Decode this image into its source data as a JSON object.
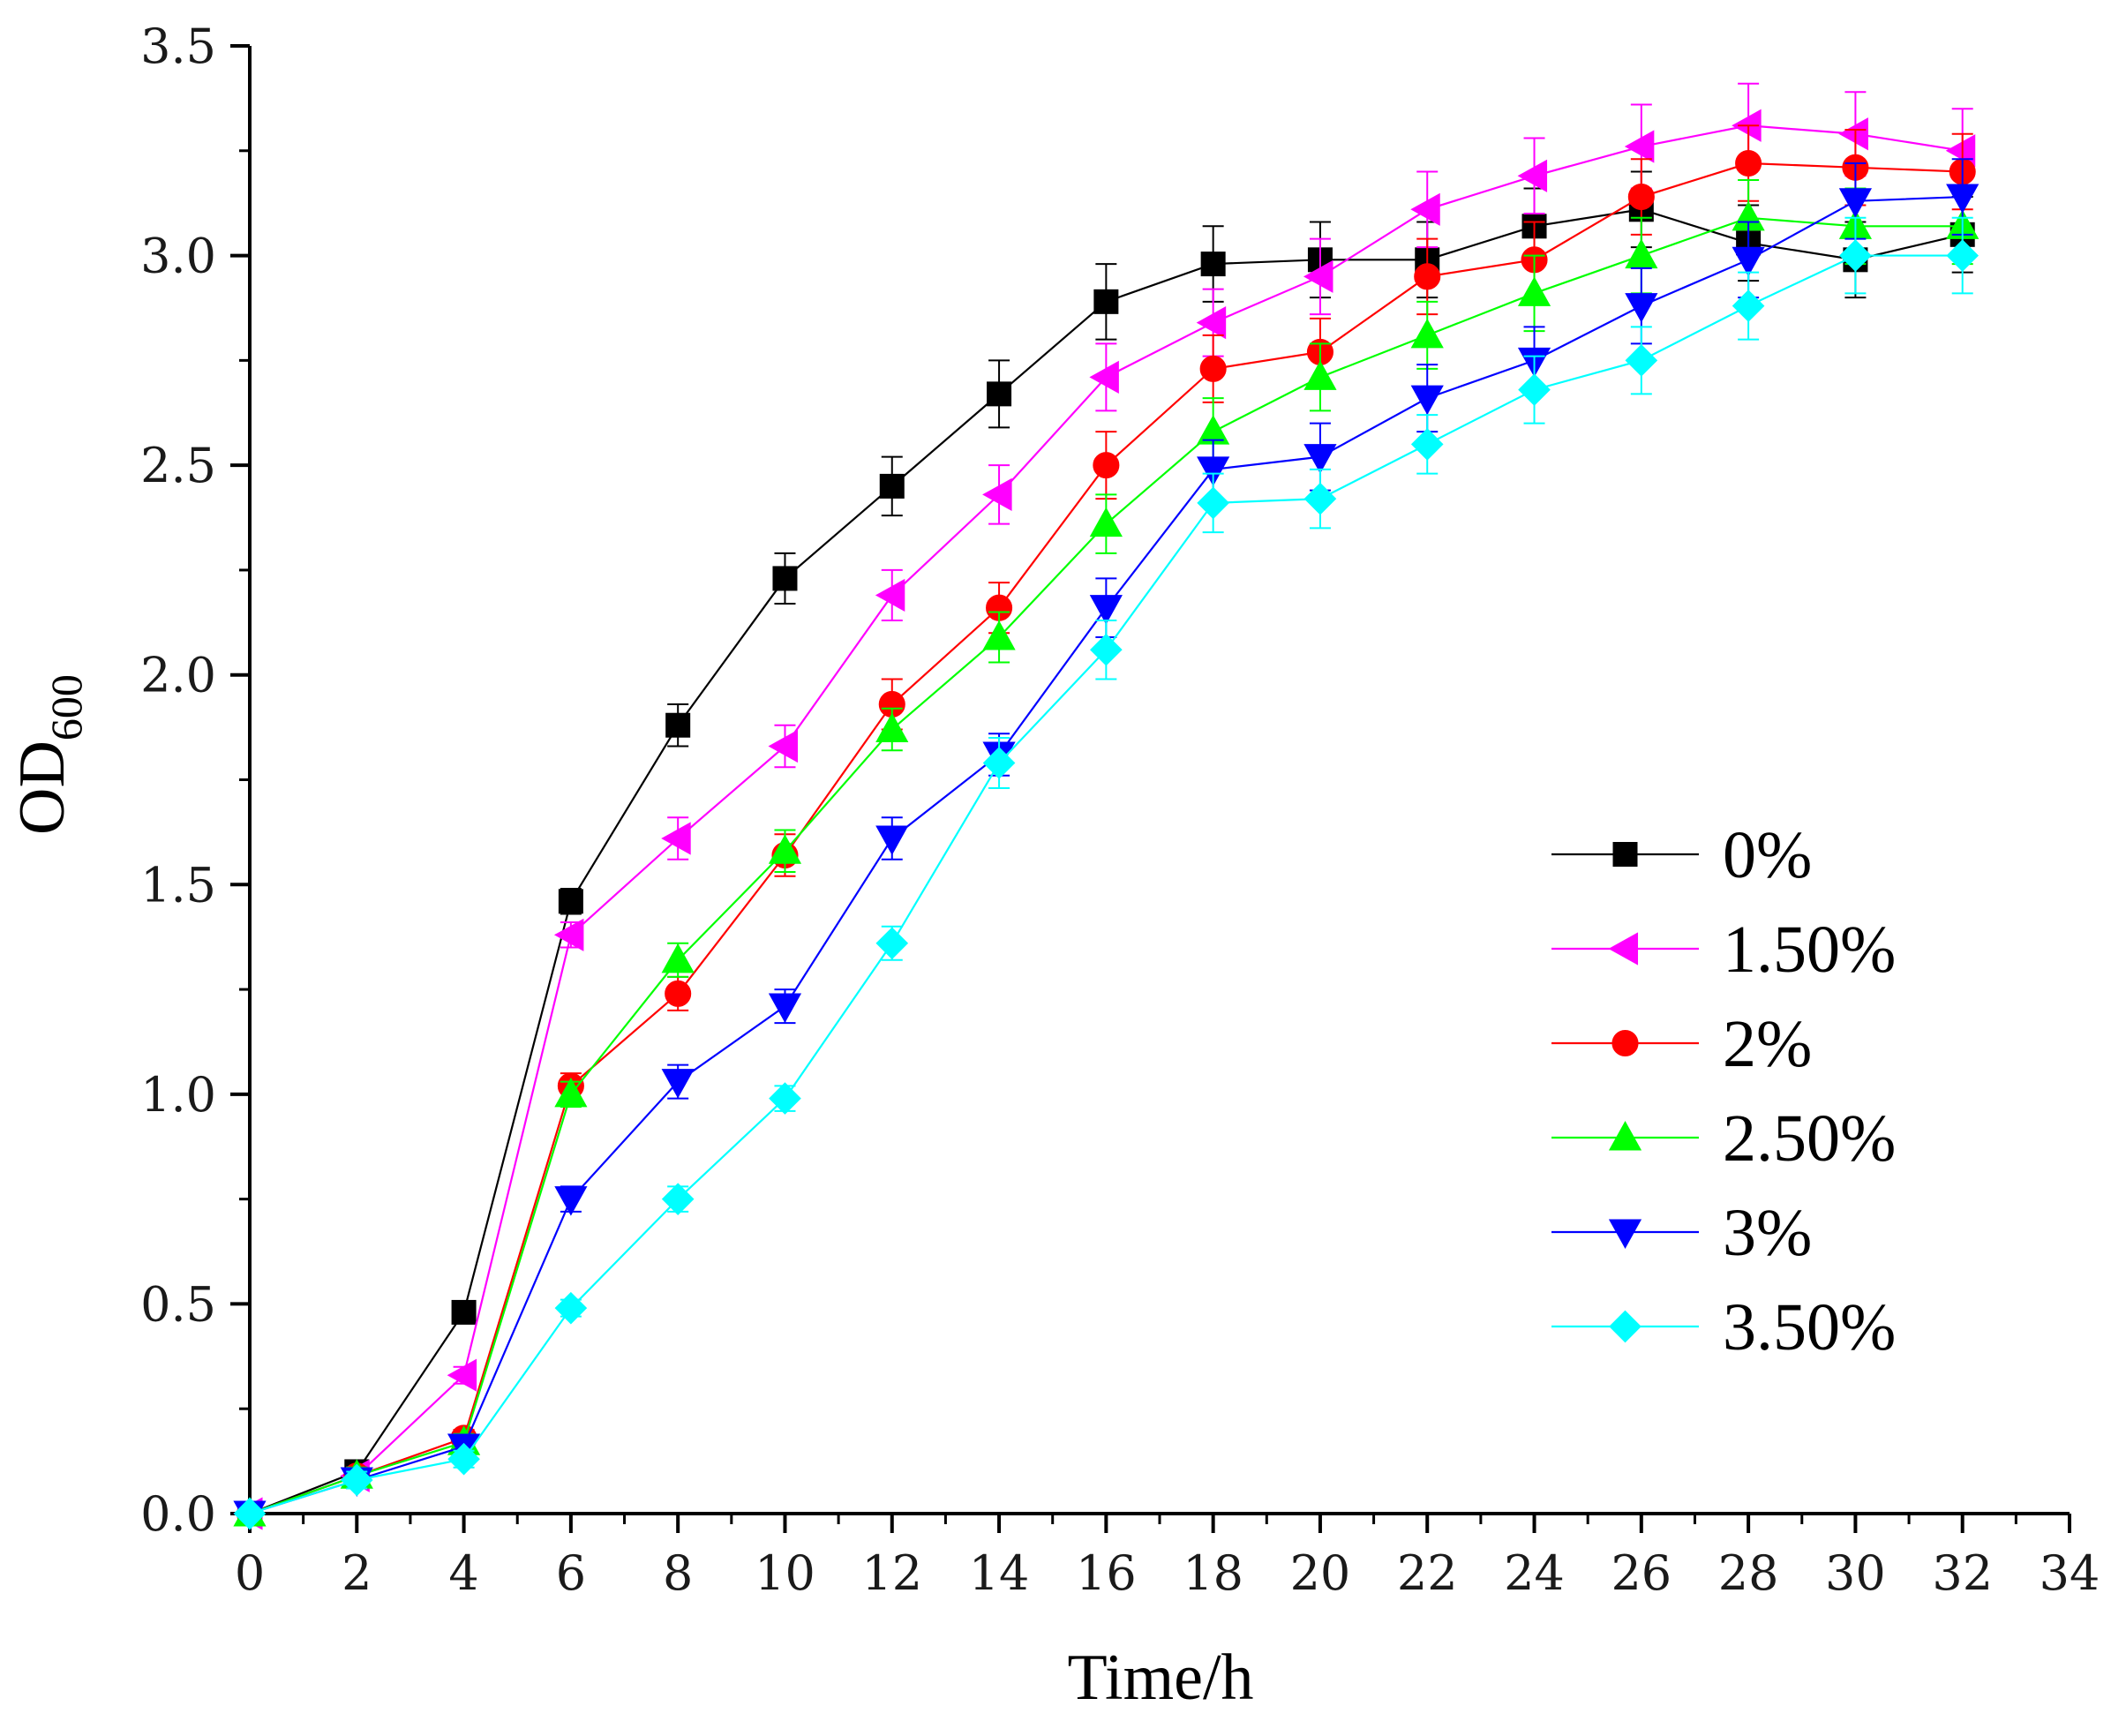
{
  "chart_data": {
    "type": "line",
    "xlabel": "Time/h",
    "ylabel": "OD",
    "ylabel_sub": "600",
    "xlim": [
      0,
      34
    ],
    "ylim": [
      0,
      3.5
    ],
    "x_ticks": [
      "0",
      "2",
      "4",
      "6",
      "8",
      "10",
      "12",
      "14",
      "16",
      "18",
      "20",
      "22",
      "24",
      "26",
      "28",
      "30",
      "32",
      "34"
    ],
    "y_ticks": [
      "0.0",
      "0.5",
      "1.0",
      "1.5",
      "2.0",
      "2.5",
      "3.0",
      "3.5"
    ],
    "x": [
      0,
      2,
      4,
      6,
      8,
      10,
      12,
      14,
      16,
      18,
      20,
      22,
      24,
      26,
      28,
      30,
      32
    ],
    "grid": false,
    "legend_position": "right",
    "series": [
      {
        "name": "0%",
        "color": "#000000",
        "marker": "square",
        "values": [
          0.0,
          0.1,
          0.48,
          1.46,
          1.88,
          2.23,
          2.45,
          2.67,
          2.89,
          2.98,
          2.99,
          2.99,
          3.07,
          3.11,
          3.03,
          2.99,
          3.05
        ],
        "errors": [
          0.01,
          0.02,
          0.02,
          0.03,
          0.05,
          0.06,
          0.07,
          0.08,
          0.09,
          0.09,
          0.09,
          0.09,
          0.09,
          0.09,
          0.09,
          0.09,
          0.09
        ]
      },
      {
        "name": "1.50%",
        "color": "#ff00ff",
        "marker": "triangle-left",
        "values": [
          0.0,
          0.09,
          0.33,
          1.38,
          1.61,
          1.83,
          2.19,
          2.43,
          2.71,
          2.84,
          2.95,
          3.11,
          3.19,
          3.26,
          3.31,
          3.29,
          3.25
        ],
        "errors": [
          0.01,
          0.02,
          0.02,
          0.03,
          0.05,
          0.05,
          0.06,
          0.07,
          0.08,
          0.08,
          0.09,
          0.09,
          0.09,
          0.1,
          0.1,
          0.1,
          0.1
        ]
      },
      {
        "name": "2%",
        "color": "#ff0000",
        "marker": "circle",
        "values": [
          0.0,
          0.09,
          0.18,
          1.02,
          1.24,
          1.57,
          1.93,
          2.16,
          2.5,
          2.73,
          2.77,
          2.95,
          2.99,
          3.14,
          3.22,
          3.21,
          3.2
        ],
        "errors": [
          0.01,
          0.02,
          0.02,
          0.03,
          0.04,
          0.05,
          0.06,
          0.06,
          0.08,
          0.08,
          0.08,
          0.09,
          0.09,
          0.09,
          0.09,
          0.09,
          0.09
        ]
      },
      {
        "name": "2.50%",
        "color": "#00ff00",
        "marker": "triangle-up",
        "values": [
          0.0,
          0.09,
          0.17,
          1.0,
          1.32,
          1.58,
          1.87,
          2.09,
          2.36,
          2.58,
          2.71,
          2.81,
          2.91,
          3.0,
          3.09,
          3.07,
          3.07
        ],
        "errors": [
          0.01,
          0.02,
          0.02,
          0.03,
          0.04,
          0.05,
          0.05,
          0.06,
          0.07,
          0.08,
          0.08,
          0.08,
          0.09,
          0.09,
          0.09,
          0.09,
          0.09
        ]
      },
      {
        "name": "3%",
        "color": "#0000ff",
        "marker": "triangle-down",
        "values": [
          0.0,
          0.08,
          0.16,
          0.75,
          1.03,
          1.21,
          1.61,
          1.81,
          2.16,
          2.49,
          2.52,
          2.66,
          2.75,
          2.88,
          2.99,
          3.13,
          3.14
        ],
        "errors": [
          0.01,
          0.02,
          0.02,
          0.03,
          0.04,
          0.04,
          0.05,
          0.05,
          0.07,
          0.07,
          0.08,
          0.08,
          0.08,
          0.09,
          0.09,
          0.09,
          0.09
        ]
      },
      {
        "name": "3.50%",
        "color": "#00ffff",
        "marker": "diamond",
        "values": [
          0.0,
          0.08,
          0.13,
          0.49,
          0.75,
          0.99,
          1.36,
          1.79,
          2.06,
          2.41,
          2.42,
          2.55,
          2.68,
          2.75,
          2.88,
          3.0,
          3.0
        ],
        "errors": [
          0.01,
          0.02,
          0.02,
          0.02,
          0.03,
          0.03,
          0.04,
          0.06,
          0.07,
          0.07,
          0.07,
          0.07,
          0.08,
          0.08,
          0.08,
          0.09,
          0.09
        ]
      }
    ]
  }
}
